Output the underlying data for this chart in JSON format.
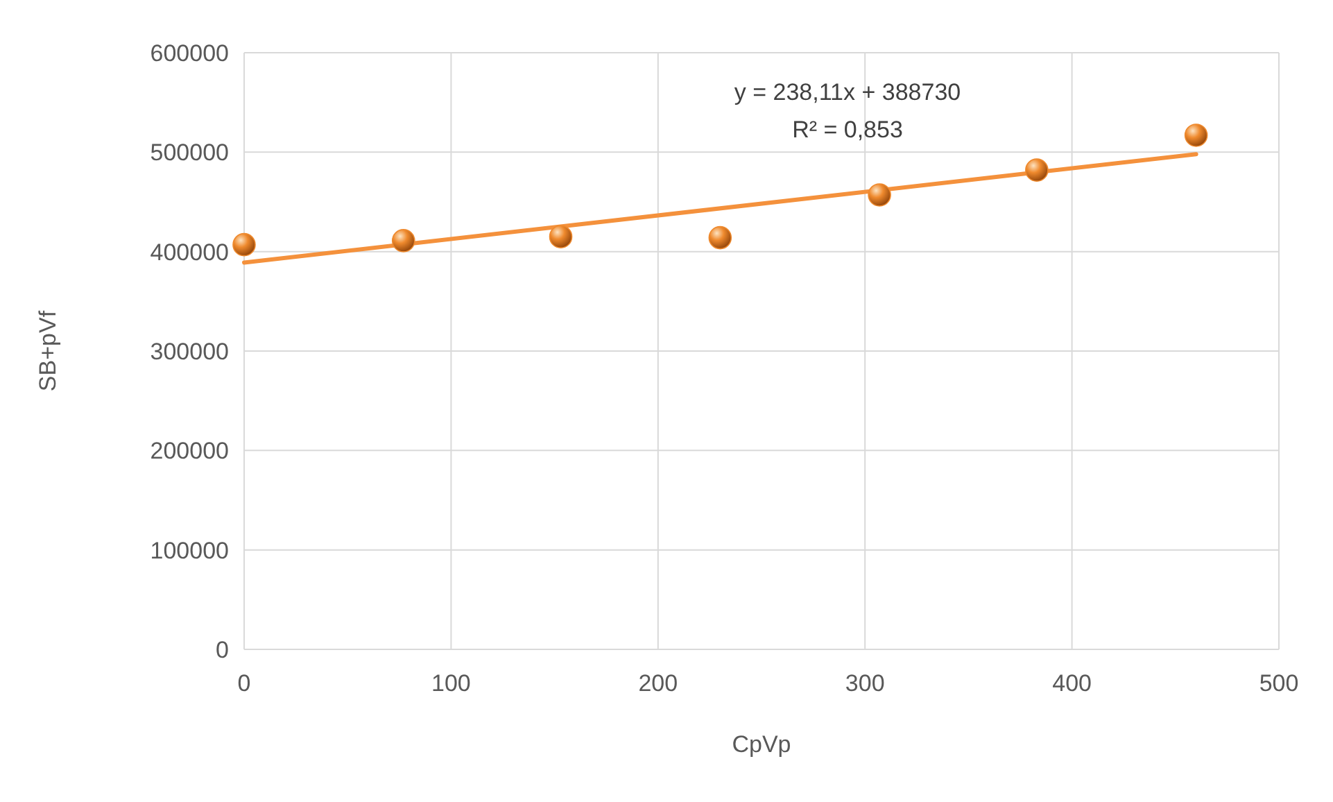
{
  "chart_data": {
    "type": "scatter",
    "xlabel": "CpVp",
    "ylabel": "SB+pVf",
    "annotations": [
      "y = 238,11x + 388730",
      "R² = 0,853"
    ],
    "xlim": [
      0,
      500
    ],
    "xticks": [
      0,
      100,
      200,
      300,
      400,
      500
    ],
    "ylim": [
      0,
      600000
    ],
    "yticks": [
      0,
      100000,
      200000,
      300000,
      400000,
      500000,
      600000
    ],
    "grid": true,
    "marker": "circle",
    "series": [
      {
        "color": "#ef8a2e",
        "x": [
          0,
          77,
          153,
          230,
          307,
          383,
          460
        ],
        "values": [
          407000,
          411000,
          415000,
          414000,
          457000,
          482000,
          517000
        ]
      },
      {
        "type": "line",
        "color": "#f4913c",
        "x": [
          0,
          460
        ],
        "values": [
          389000,
          498000
        ],
        "marker": "none"
      }
    ]
  }
}
